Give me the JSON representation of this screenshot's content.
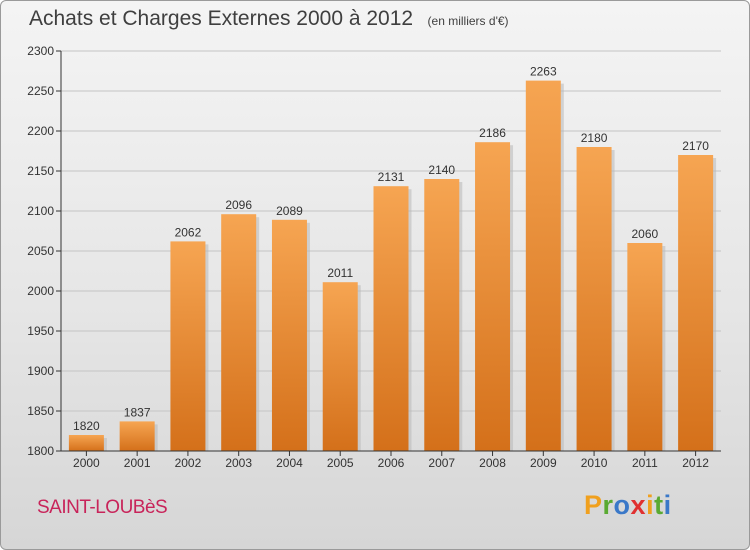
{
  "header": {
    "title": "Achats et Charges Externes 2000 à 2012",
    "subtitle": "(en milliers d'€)"
  },
  "footer": {
    "commune": "SAINT-LOUBèS",
    "logo": {
      "letters": [
        "P",
        "r",
        "o",
        "x",
        "i",
        "t",
        "i"
      ],
      "colors": [
        "#f0a01e",
        "#5aaa32",
        "#3a78c8",
        "#e03030",
        "#f0a01e",
        "#5aaa32",
        "#3a78c8"
      ]
    }
  },
  "colors": {
    "bar_light": "#f6a552",
    "bar_dark": "#d4701a",
    "axis": "#333333",
    "grid": "#c4c4c4"
  },
  "chart_data": {
    "type": "bar",
    "title": "Achats et Charges Externes 2000 à 2012",
    "subtitle": "(en milliers d'€)",
    "categories": [
      "2000",
      "2001",
      "2002",
      "2003",
      "2004",
      "2005",
      "2006",
      "2007",
      "2008",
      "2009",
      "2010",
      "2011",
      "2012"
    ],
    "values": [
      1820,
      1837,
      2062,
      2096,
      2089,
      2011,
      2131,
      2140,
      2186,
      2263,
      2180,
      2060,
      2170
    ],
    "ylim": [
      1800,
      2300
    ],
    "yticks": [
      1800,
      1850,
      1900,
      1950,
      2000,
      2050,
      2100,
      2150,
      2200,
      2250,
      2300
    ],
    "grid": true
  }
}
